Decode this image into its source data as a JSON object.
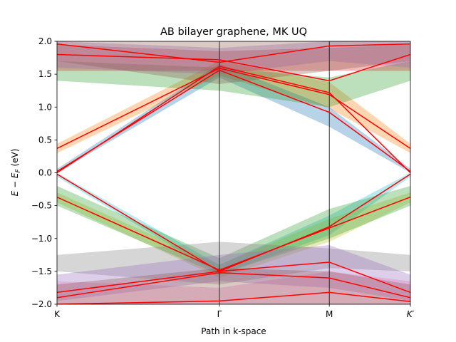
{
  "chart_data": {
    "type": "line",
    "title": "AB bilayer graphene, MK UQ",
    "xlabel": "Path in k-space",
    "ylabel": "E − E_F (eV)",
    "ylim": [
      -2.0,
      2.0
    ],
    "xlim": [
      0,
      3.216
    ],
    "yticks": [
      -2.0,
      -1.5,
      -1.0,
      -0.5,
      0.0,
      0.5,
      1.0,
      1.5,
      2.0
    ],
    "ytick_labels": [
      "−2.0",
      "−1.5",
      "−1.0",
      "−0.5",
      "0.0",
      "0.5",
      "1.0",
      "1.5",
      "2.0"
    ],
    "kpoints": [
      {
        "label": "K",
        "x": 0
      },
      {
        "label": "Γ",
        "x": 1.478
      },
      {
        "label": "M",
        "x": 2.478
      },
      {
        "label": "K′",
        "x": 3.216
      }
    ],
    "grid": false,
    "legend": "none",
    "line_color": "#ff0000",
    "series": [
      {
        "x": [
          0,
          1.478,
          2.478,
          3.216
        ],
        "values": [
          0.37,
          1.59,
          1.19,
          0.37
        ]
      },
      {
        "x": [
          0,
          1.478,
          2.478,
          3.216
        ],
        "values": [
          0.02,
          1.56,
          0.92,
          0.02
        ]
      },
      {
        "x": [
          0,
          1.478,
          2.478,
          3.216
        ],
        "values": [
          0.0,
          1.62,
          1.22,
          0.0
        ]
      },
      {
        "x": [
          0,
          1.478,
          2.478,
          3.216
        ],
        "values": [
          -0.37,
          -1.48,
          -0.84,
          -0.37
        ]
      },
      {
        "x": [
          0,
          1.478,
          2.478,
          3.216
        ],
        "values": [
          -0.02,
          -1.5,
          -0.82,
          -0.02
        ]
      },
      {
        "x": [
          0,
          1.478,
          2.478,
          3.216
        ],
        "values": [
          1.96,
          1.68,
          1.93,
          1.96
        ]
      },
      {
        "x": [
          0,
          1.478,
          2.478,
          3.216
        ],
        "values": [
          1.8,
          1.72,
          1.4,
          1.8
        ]
      },
      {
        "x": [
          0,
          1.478,
          2.478,
          3.216
        ],
        "values": [
          -1.82,
          -1.5,
          -1.36,
          -1.82
        ]
      },
      {
        "x": [
          0,
          1.478,
          2.478,
          3.216
        ],
        "values": [
          -1.9,
          -1.52,
          -1.6,
          -1.9
        ]
      },
      {
        "x": [
          0,
          1.478,
          2.478,
          3.216
        ],
        "values": [
          -2.0,
          -1.95,
          -1.82,
          -1.96
        ]
      }
    ],
    "bands": [
      {
        "color": "#ff7f0e",
        "lower": [
          0.3,
          1.48,
          0.98,
          0.3
        ],
        "upper": [
          0.44,
          1.7,
          1.38,
          0.44
        ]
      },
      {
        "color": "#1f77b4",
        "lower": [
          0.0,
          1.45,
          0.7,
          0.0
        ],
        "upper": [
          0.06,
          1.66,
          1.0,
          0.06
        ]
      },
      {
        "color": "#2ca02c",
        "lower": [
          1.4,
          1.25,
          1.0,
          1.4
        ],
        "upper": [
          1.7,
          1.6,
          1.45,
          1.7
        ]
      },
      {
        "color": "#d62728",
        "lower": [
          1.55,
          1.55,
          1.55,
          1.55
        ],
        "upper": [
          1.95,
          1.85,
          1.9,
          1.95
        ]
      },
      {
        "color": "#9467bd",
        "lower": [
          1.6,
          1.5,
          1.7,
          1.6
        ],
        "upper": [
          2.0,
          1.9,
          2.0,
          2.0
        ]
      },
      {
        "color": "#8c564b",
        "lower": [
          1.7,
          1.35,
          1.55,
          1.7
        ],
        "upper": [
          2.0,
          2.0,
          2.0,
          2.0
        ]
      },
      {
        "color": "#17becf",
        "lower": [
          -0.06,
          -1.55,
          -0.95,
          -0.06
        ],
        "upper": [
          0.0,
          -1.4,
          -0.65,
          0.0
        ]
      },
      {
        "color": "#bcbd22",
        "lower": [
          -0.45,
          -1.6,
          -1.05,
          -0.45
        ],
        "upper": [
          -0.3,
          -1.4,
          -0.7,
          -0.3
        ]
      },
      {
        "color": "#2ca02c",
        "lower": [
          -0.5,
          -1.55,
          -1.0,
          -0.5
        ],
        "upper": [
          -0.2,
          -1.3,
          -0.55,
          -0.2
        ]
      },
      {
        "color": "#7f7f7f",
        "lower": [
          -1.5,
          -1.7,
          -1.45,
          -1.5
        ],
        "upper": [
          -1.25,
          -1.05,
          -1.15,
          -1.25
        ]
      },
      {
        "color": "#9467bd",
        "lower": [
          -1.95,
          -1.65,
          -1.75,
          -1.95
        ],
        "upper": [
          -1.55,
          -1.25,
          -1.1,
          -1.55
        ]
      },
      {
        "color": "#e377c2",
        "lower": [
          -2.0,
          -2.0,
          -2.0,
          -2.0
        ],
        "upper": [
          -1.65,
          -1.75,
          -1.5,
          -1.65
        ]
      },
      {
        "color": "#8c564b",
        "lower": [
          -2.0,
          -2.0,
          -2.0,
          -2.0
        ],
        "upper": [
          -1.7,
          -1.45,
          -1.5,
          -1.7
        ]
      }
    ]
  }
}
